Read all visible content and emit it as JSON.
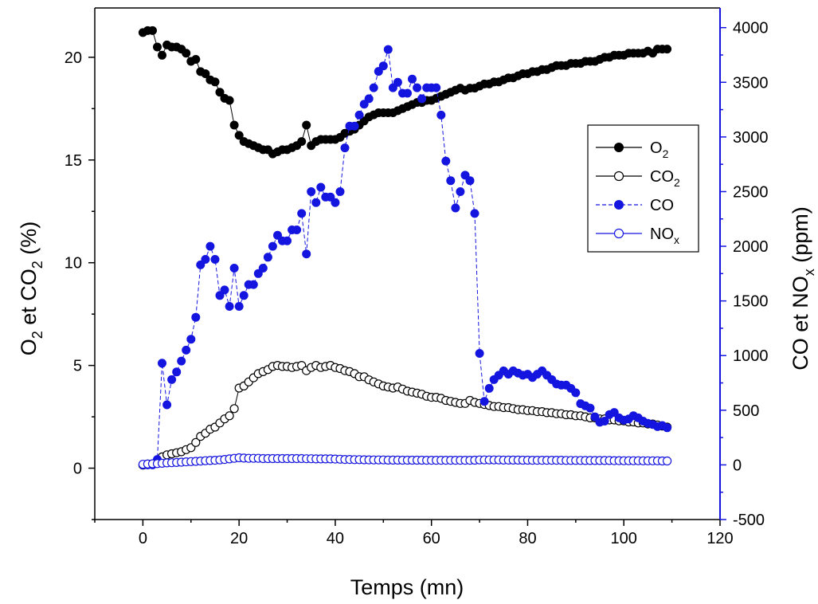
{
  "chart_data": {
    "type": "scatter",
    "xlabel": "Temps (mn)",
    "ylabel_left": {
      "main": "O",
      "sub1": "2",
      "mid": " et CO",
      "sub2": "2",
      "tail": " (%)"
    },
    "ylabel_right": {
      "main": "CO et NO",
      "sub": "x",
      "tail": " (ppm)"
    },
    "xlim": [
      -10,
      120
    ],
    "ylim_left": [
      -2.5,
      22.4
    ],
    "ylim_right": [
      -500,
      4180
    ],
    "x_ticks": [
      0,
      20,
      40,
      60,
      80,
      100,
      120
    ],
    "y_left_ticks": [
      0,
      5,
      10,
      15,
      20
    ],
    "y_right_ticks": [
      -500,
      0,
      500,
      1000,
      1500,
      2000,
      2500,
      3000,
      3500,
      4000
    ],
    "right_axis_color": "#1515e0",
    "legend_position": "right",
    "series": [
      {
        "name": "O",
        "name_sub": "2",
        "axis": "left",
        "marker": "filled",
        "color": "#000000",
        "line": "solid",
        "x": [
          0,
          1,
          2,
          3,
          4,
          5,
          6,
          7,
          8,
          9,
          10,
          11,
          12,
          13,
          14,
          15,
          16,
          17,
          18,
          19,
          20,
          21,
          22,
          23,
          24,
          25,
          26,
          27,
          28,
          29,
          30,
          31,
          32,
          33,
          34,
          35,
          36,
          37,
          38,
          39,
          40,
          41,
          42,
          43,
          44,
          45,
          46,
          47,
          48,
          49,
          50,
          51,
          52,
          53,
          54,
          55,
          56,
          57,
          58,
          59,
          60,
          61,
          62,
          63,
          64,
          65,
          66,
          67,
          68,
          69,
          70,
          71,
          72,
          73,
          74,
          75,
          76,
          77,
          78,
          79,
          80,
          81,
          82,
          83,
          84,
          85,
          86,
          87,
          88,
          89,
          90,
          91,
          92,
          93,
          94,
          95,
          96,
          97,
          98,
          99,
          100,
          101,
          102,
          103,
          104,
          105,
          106,
          107,
          108,
          109
        ],
        "y": [
          21.2,
          21.3,
          21.3,
          20.5,
          20.1,
          20.6,
          20.5,
          20.5,
          20.4,
          20.2,
          19.8,
          19.9,
          19.3,
          19.2,
          18.9,
          18.8,
          18.3,
          18.0,
          17.9,
          16.7,
          16.2,
          15.9,
          15.8,
          15.7,
          15.6,
          15.5,
          15.5,
          15.3,
          15.4,
          15.5,
          15.5,
          15.6,
          15.7,
          15.9,
          16.7,
          15.7,
          15.9,
          16.0,
          16.0,
          16.0,
          16.0,
          16.1,
          16.3,
          16.4,
          16.5,
          16.7,
          16.9,
          17.1,
          17.2,
          17.3,
          17.3,
          17.3,
          17.3,
          17.4,
          17.5,
          17.6,
          17.7,
          17.8,
          17.8,
          17.9,
          17.9,
          18.0,
          18.1,
          18.2,
          18.3,
          18.4,
          18.5,
          18.4,
          18.5,
          18.5,
          18.6,
          18.7,
          18.7,
          18.8,
          18.8,
          18.9,
          19.0,
          19.0,
          19.1,
          19.2,
          19.2,
          19.3,
          19.3,
          19.4,
          19.4,
          19.5,
          19.6,
          19.6,
          19.6,
          19.7,
          19.7,
          19.7,
          19.8,
          19.8,
          19.8,
          19.9,
          20.0,
          20.0,
          20.1,
          20.1,
          20.1,
          20.2,
          20.2,
          20.2,
          20.2,
          20.3,
          20.2,
          20.4,
          20.4,
          20.4
        ]
      },
      {
        "name": "CO",
        "name_sub": "2",
        "axis": "left",
        "marker": "open",
        "color": "#000000",
        "line": "solid",
        "x": [
          0,
          1,
          2,
          3,
          4,
          5,
          6,
          7,
          8,
          9,
          10,
          11,
          12,
          13,
          14,
          15,
          16,
          17,
          18,
          19,
          20,
          21,
          22,
          23,
          24,
          25,
          26,
          27,
          28,
          29,
          30,
          31,
          32,
          33,
          34,
          35,
          36,
          37,
          38,
          39,
          40,
          41,
          42,
          43,
          44,
          45,
          46,
          47,
          48,
          49,
          50,
          51,
          52,
          53,
          54,
          55,
          56,
          57,
          58,
          59,
          60,
          61,
          62,
          63,
          64,
          65,
          66,
          67,
          68,
          69,
          70,
          71,
          72,
          73,
          74,
          75,
          76,
          77,
          78,
          79,
          80,
          81,
          82,
          83,
          84,
          85,
          86,
          87,
          88,
          89,
          90,
          91,
          92,
          93,
          94,
          95,
          96,
          97,
          98,
          99,
          100,
          101,
          102,
          103,
          104,
          105,
          106,
          107,
          108,
          109
        ],
        "y": [
          0.15,
          0.2,
          0.2,
          0.35,
          0.55,
          0.65,
          0.7,
          0.75,
          0.8,
          0.9,
          1.0,
          1.25,
          1.55,
          1.7,
          1.9,
          2.0,
          2.2,
          2.4,
          2.55,
          2.9,
          3.9,
          4.0,
          4.2,
          4.4,
          4.6,
          4.7,
          4.8,
          4.95,
          5.0,
          4.95,
          4.95,
          4.9,
          4.95,
          5.0,
          4.75,
          4.9,
          5.0,
          4.9,
          4.95,
          5.0,
          4.9,
          4.85,
          4.75,
          4.7,
          4.6,
          4.45,
          4.45,
          4.3,
          4.2,
          4.1,
          4.0,
          3.95,
          3.9,
          3.95,
          3.85,
          3.75,
          3.7,
          3.65,
          3.6,
          3.5,
          3.45,
          3.45,
          3.4,
          3.3,
          3.25,
          3.2,
          3.15,
          3.15,
          3.3,
          3.2,
          3.15,
          3.1,
          3.05,
          3.0,
          3.0,
          2.95,
          2.95,
          2.9,
          2.85,
          2.85,
          2.8,
          2.8,
          2.75,
          2.75,
          2.7,
          2.7,
          2.65,
          2.65,
          2.6,
          2.6,
          2.55,
          2.55,
          2.5,
          2.45,
          2.45,
          2.4,
          2.4,
          2.35,
          2.35,
          2.3,
          2.3,
          2.25,
          2.25,
          2.2,
          2.2,
          2.15,
          2.15,
          2.1,
          2.05,
          2.0
        ]
      },
      {
        "name": "CO",
        "name_sub": "",
        "axis": "right",
        "marker": "filled",
        "color": "#1515e0",
        "line": "dashed",
        "x": [
          0,
          1,
          2,
          3,
          4,
          5,
          6,
          7,
          8,
          9,
          10,
          11,
          12,
          13,
          14,
          15,
          16,
          17,
          18,
          19,
          20,
          21,
          22,
          23,
          24,
          25,
          26,
          27,
          28,
          29,
          30,
          31,
          32,
          33,
          34,
          35,
          36,
          37,
          38,
          39,
          40,
          41,
          42,
          43,
          44,
          45,
          46,
          47,
          48,
          49,
          50,
          51,
          52,
          53,
          54,
          55,
          56,
          57,
          58,
          59,
          60,
          61,
          62,
          63,
          64,
          65,
          66,
          67,
          68,
          69,
          70,
          71,
          72,
          73,
          74,
          75,
          76,
          77,
          78,
          79,
          80,
          81,
          82,
          83,
          84,
          85,
          86,
          87,
          88,
          89,
          90,
          91,
          92,
          93,
          94,
          95,
          96,
          97,
          98,
          99,
          100,
          101,
          102,
          103,
          104,
          105,
          106,
          107,
          108,
          109
        ],
        "y": [
          0,
          0,
          0,
          50,
          930,
          550,
          780,
          850,
          950,
          1050,
          1150,
          1350,
          1830,
          1880,
          2000,
          1880,
          1550,
          1600,
          1450,
          1800,
          1450,
          1550,
          1650,
          1650,
          1750,
          1800,
          1900,
          2000,
          2100,
          2050,
          2050,
          2150,
          2150,
          2300,
          1930,
          2500,
          2400,
          2540,
          2450,
          2450,
          2400,
          2500,
          2900,
          3100,
          3100,
          3200,
          3300,
          3350,
          3450,
          3600,
          3650,
          3800,
          3450,
          3500,
          3400,
          3400,
          3530,
          3450,
          3350,
          3450,
          3450,
          3450,
          3200,
          2780,
          2600,
          2350,
          2500,
          2650,
          2600,
          2300,
          1020,
          580,
          700,
          780,
          820,
          860,
          830,
          860,
          840,
          820,
          830,
          800,
          830,
          860,
          820,
          780,
          740,
          730,
          730,
          700,
          660,
          560,
          540,
          520,
          440,
          390,
          400,
          460,
          480,
          430,
          410,
          420,
          450,
          430,
          400,
          380,
          370,
          350,
          360,
          340
        ]
      },
      {
        "name": "NO",
        "name_sub": "x",
        "axis": "right",
        "marker": "open",
        "color": "#1515e0",
        "line": "solid",
        "x": [
          0,
          1,
          2,
          3,
          4,
          5,
          6,
          7,
          8,
          9,
          10,
          11,
          12,
          13,
          14,
          15,
          16,
          17,
          18,
          19,
          20,
          21,
          22,
          23,
          24,
          25,
          26,
          27,
          28,
          29,
          30,
          31,
          32,
          33,
          34,
          35,
          36,
          37,
          38,
          39,
          40,
          41,
          42,
          43,
          44,
          45,
          46,
          47,
          48,
          49,
          50,
          51,
          52,
          53,
          54,
          55,
          56,
          57,
          58,
          59,
          60,
          61,
          62,
          63,
          64,
          65,
          66,
          67,
          68,
          69,
          70,
          71,
          72,
          73,
          74,
          75,
          76,
          77,
          78,
          79,
          80,
          81,
          82,
          83,
          84,
          85,
          86,
          87,
          88,
          89,
          90,
          91,
          92,
          93,
          94,
          95,
          96,
          97,
          98,
          99,
          100,
          101,
          102,
          103,
          104,
          105,
          106,
          107,
          108,
          109
        ],
        "y": [
          5,
          8,
          10,
          12,
          15,
          18,
          20,
          22,
          25,
          28,
          30,
          32,
          35,
          38,
          40,
          42,
          45,
          50,
          55,
          60,
          65,
          62,
          60,
          60,
          60,
          58,
          58,
          58,
          58,
          58,
          58,
          58,
          58,
          58,
          56,
          56,
          55,
          55,
          55,
          55,
          53,
          52,
          50,
          50,
          48,
          48,
          47,
          46,
          45,
          45,
          45,
          44,
          44,
          44,
          43,
          43,
          43,
          43,
          43,
          42,
          42,
          42,
          42,
          42,
          42,
          42,
          42,
          42,
          42,
          43,
          45,
          45,
          45,
          45,
          45,
          44,
          44,
          44,
          44,
          43,
          43,
          42,
          42,
          42,
          42,
          42,
          42,
          42,
          41,
          41,
          41,
          41,
          40,
          40,
          40,
          40,
          40,
          40,
          39,
          39,
          38,
          38,
          38,
          38,
          37,
          37,
          37,
          37,
          36,
          36
        ]
      }
    ]
  }
}
